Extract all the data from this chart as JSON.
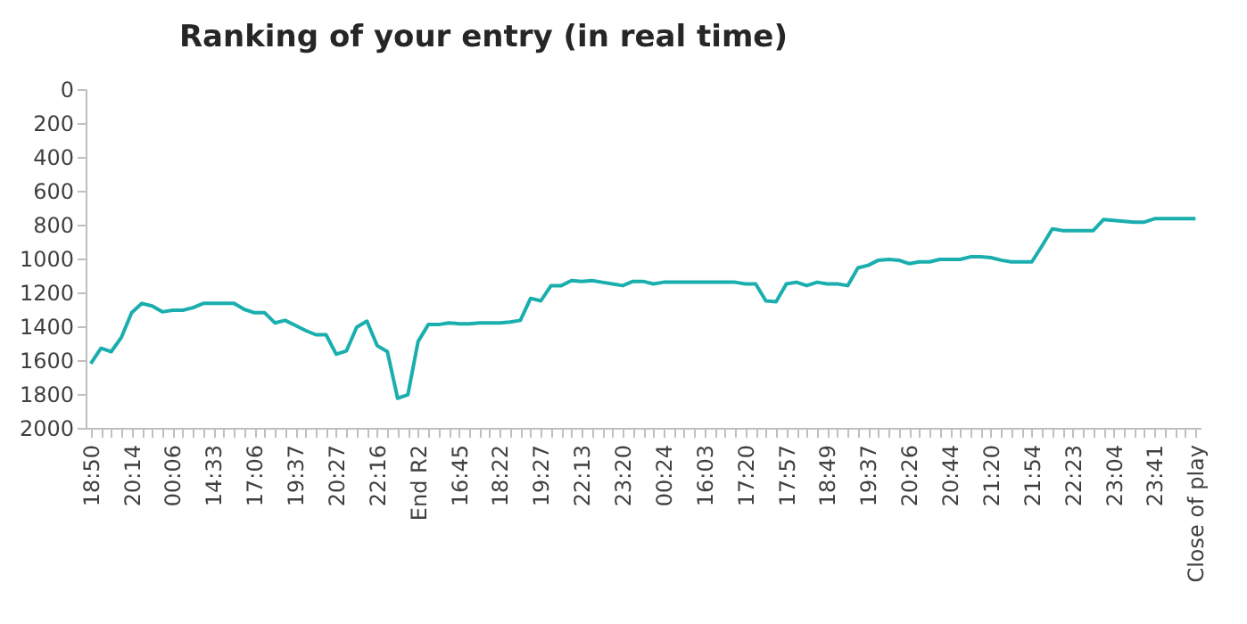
{
  "chart_data": {
    "type": "line",
    "title": "Ranking of your entry (in real time)",
    "categories": [
      "18:50",
      null,
      null,
      null,
      "20:14",
      null,
      null,
      null,
      "00:06",
      null,
      null,
      null,
      "14:33",
      null,
      null,
      null,
      "17:06",
      null,
      null,
      null,
      "19:37",
      null,
      null,
      null,
      "20:27",
      null,
      null,
      null,
      "22:16",
      null,
      null,
      null,
      "End R2",
      null,
      null,
      null,
      "16:45",
      null,
      null,
      null,
      "18:22",
      null,
      null,
      null,
      "19:27",
      null,
      null,
      null,
      "22:13",
      null,
      null,
      null,
      "23:20",
      null,
      null,
      null,
      "00:24",
      null,
      null,
      null,
      "16:03",
      null,
      null,
      null,
      "17:20",
      null,
      null,
      null,
      "17:57",
      null,
      null,
      null,
      "18:49",
      null,
      null,
      null,
      "19:37",
      null,
      null,
      null,
      "20:26",
      null,
      null,
      null,
      "20:44",
      null,
      null,
      null,
      "21:20",
      null,
      null,
      null,
      "21:54",
      null,
      null,
      null,
      "22:23",
      null,
      null,
      null,
      "23:04",
      null,
      null,
      null,
      "23:41",
      null,
      null,
      null,
      "Close of play"
    ],
    "series": [
      {
        "color": "#1aaeae",
        "values": [
          1620,
          1530,
          1550,
          1465,
          1320,
          1265,
          1280,
          1315,
          1305,
          1305,
          1290,
          1265,
          1265,
          1265,
          1265,
          1300,
          1320,
          1320,
          1380,
          1365,
          1395,
          1425,
          1450,
          1450,
          1565,
          1545,
          1405,
          1370,
          1515,
          1550,
          1825,
          1805,
          1490,
          1390,
          1390,
          1380,
          1385,
          1385,
          1380,
          1380,
          1380,
          1375,
          1365,
          1235,
          1250,
          1160,
          1160,
          1130,
          1135,
          1130,
          1140,
          1150,
          1160,
          1135,
          1135,
          1150,
          1140,
          1140,
          1140,
          1140,
          1140,
          1140,
          1140,
          1140,
          1150,
          1150,
          1250,
          1255,
          1150,
          1140,
          1160,
          1140,
          1150,
          1150,
          1160,
          1055,
          1040,
          1010,
          1005,
          1010,
          1030,
          1020,
          1020,
          1005,
          1005,
          1005,
          990,
          990,
          995,
          1010,
          1020,
          1020,
          1020,
          925,
          825,
          835,
          835,
          835,
          835,
          770,
          775,
          780,
          785,
          785,
          765,
          765,
          765,
          765,
          765
        ]
      }
    ],
    "ylim": [
      2000,
      0
    ],
    "yticks": [
      0,
      200,
      400,
      600,
      800,
      1000,
      1200,
      1400,
      1600,
      1800,
      2000
    ],
    "grid": false,
    "legend": false,
    "line_style": "solid",
    "marker": "none"
  }
}
